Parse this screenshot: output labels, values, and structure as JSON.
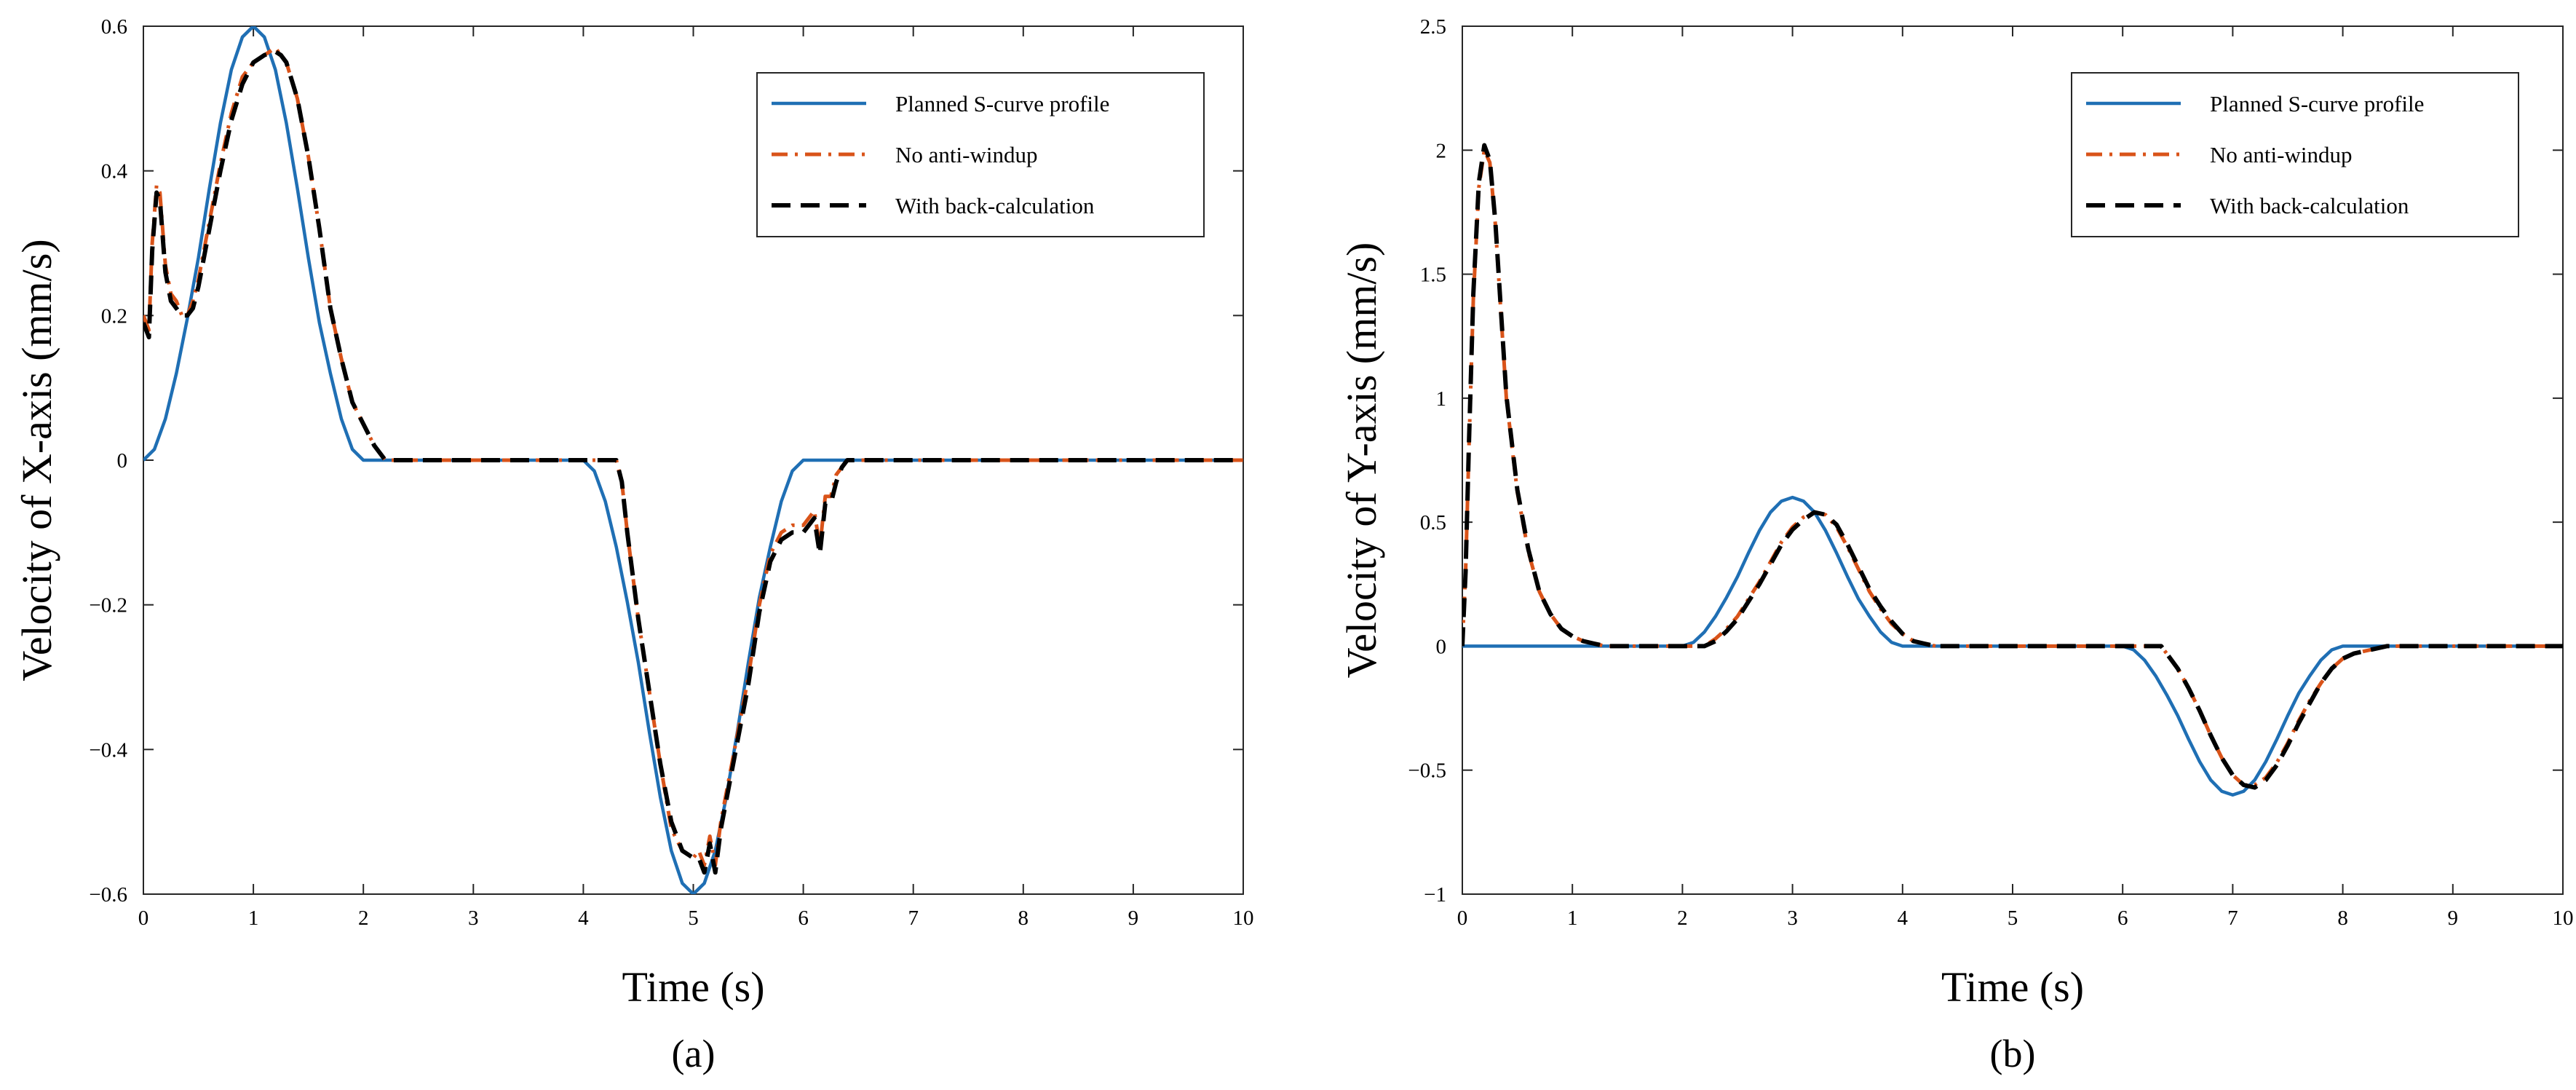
{
  "chart_data": [
    {
      "type": "line",
      "caption": "(a)",
      "xlabel": "Time (s)",
      "ylabel": "Velocity of X-axis (mm/s)",
      "xlim": [
        0,
        10
      ],
      "ylim": [
        -0.6,
        0.6
      ],
      "xticks": [
        0,
        1,
        2,
        3,
        4,
        5,
        6,
        7,
        8,
        9,
        10
      ],
      "xtick_labels": [
        "0",
        "1",
        "2",
        "3",
        "4",
        "5",
        "6",
        "7",
        "8",
        "9",
        "10"
      ],
      "yticks": [
        -0.6,
        -0.4,
        -0.2,
        0,
        0.2,
        0.4,
        0.6
      ],
      "ytick_labels": [
        "−0.6",
        "−0.4",
        "−0.2",
        "0",
        "0.2",
        "0.4",
        "0.6"
      ],
      "legend_position": "top-right",
      "series": [
        {
          "name": "Planned S-curve profile",
          "color": "#1f6fb4",
          "style": "solid",
          "x": [
            0,
            0.1,
            0.2,
            0.3,
            0.4,
            0.5,
            0.6,
            0.7,
            0.8,
            0.9,
            1.0,
            1.1,
            1.2,
            1.3,
            1.4,
            1.5,
            1.6,
            1.7,
            1.8,
            1.9,
            2.0,
            4.0,
            4.1,
            4.2,
            4.3,
            4.4,
            4.5,
            4.6,
            4.7,
            4.8,
            4.9,
            5.0,
            5.1,
            5.2,
            5.3,
            5.4,
            5.5,
            5.6,
            5.7,
            5.8,
            5.9,
            6.0,
            10
          ],
          "y": [
            0,
            0.015,
            0.057,
            0.12,
            0.196,
            0.28,
            0.376,
            0.466,
            0.54,
            0.585,
            0.6,
            0.585,
            0.54,
            0.466,
            0.376,
            0.28,
            0.19,
            0.12,
            0.057,
            0.015,
            0,
            0,
            -0.015,
            -0.057,
            -0.12,
            -0.196,
            -0.28,
            -0.376,
            -0.466,
            -0.54,
            -0.585,
            -0.6,
            -0.585,
            -0.54,
            -0.466,
            -0.376,
            -0.28,
            -0.19,
            -0.12,
            -0.057,
            -0.015,
            0,
            0
          ]
        },
        {
          "name": "No anti-windup",
          "color": "#d95319",
          "style": "dashdot",
          "x": [
            0,
            0.05,
            0.08,
            0.12,
            0.15,
            0.2,
            0.25,
            0.3,
            0.35,
            0.4,
            0.45,
            0.5,
            0.6,
            0.7,
            0.8,
            0.9,
            1.0,
            1.1,
            1.2,
            1.25,
            1.3,
            1.4,
            1.5,
            1.6,
            1.7,
            1.8,
            1.9,
            2.0,
            2.1,
            2.2,
            2.25,
            4.3,
            4.35,
            4.4,
            4.5,
            4.6,
            4.7,
            4.8,
            4.9,
            5.0,
            5.05,
            5.1,
            5.15,
            5.2,
            5.25,
            5.3,
            5.4,
            5.5,
            5.6,
            5.7,
            5.8,
            5.9,
            6.0,
            6.1,
            6.15,
            6.2,
            6.25,
            6.3,
            6.35,
            6.4,
            6.45,
            10
          ],
          "y": [
            0.2,
            0.18,
            0.3,
            0.38,
            0.37,
            0.27,
            0.23,
            0.22,
            0.2,
            0.2,
            0.22,
            0.25,
            0.33,
            0.41,
            0.48,
            0.53,
            0.55,
            0.56,
            0.57,
            0.56,
            0.55,
            0.5,
            0.42,
            0.32,
            0.21,
            0.14,
            0.08,
            0.05,
            0.02,
            0.0,
            0,
            0,
            -0.03,
            -0.1,
            -0.22,
            -0.32,
            -0.42,
            -0.51,
            -0.54,
            -0.55,
            -0.54,
            -0.56,
            -0.52,
            -0.56,
            -0.5,
            -0.46,
            -0.38,
            -0.3,
            -0.2,
            -0.13,
            -0.1,
            -0.09,
            -0.09,
            -0.07,
            -0.12,
            -0.05,
            -0.05,
            -0.02,
            -0.01,
            0,
            0,
            0
          ]
        },
        {
          "name": "With back-calculation",
          "color": "#000000",
          "style": "dashed",
          "x": [
            0,
            0.05,
            0.08,
            0.12,
            0.15,
            0.2,
            0.25,
            0.3,
            0.35,
            0.4,
            0.45,
            0.5,
            0.6,
            0.7,
            0.8,
            0.9,
            1.0,
            1.1,
            1.2,
            1.25,
            1.3,
            1.4,
            1.5,
            1.6,
            1.7,
            1.8,
            1.9,
            2.0,
            2.1,
            2.2,
            2.25,
            4.3,
            4.35,
            4.4,
            4.5,
            4.6,
            4.7,
            4.8,
            4.9,
            5.0,
            5.05,
            5.1,
            5.15,
            5.2,
            5.25,
            5.3,
            5.4,
            5.5,
            5.6,
            5.7,
            5.8,
            5.9,
            6.0,
            6.1,
            6.15,
            6.2,
            6.25,
            6.3,
            6.35,
            6.4,
            6.45,
            10
          ],
          "y": [
            0.19,
            0.17,
            0.29,
            0.37,
            0.36,
            0.26,
            0.22,
            0.21,
            0.2,
            0.2,
            0.21,
            0.24,
            0.32,
            0.4,
            0.47,
            0.52,
            0.55,
            0.56,
            0.565,
            0.56,
            0.55,
            0.5,
            0.42,
            0.32,
            0.21,
            0.14,
            0.08,
            0.05,
            0.02,
            0.0,
            0,
            0,
            -0.03,
            -0.1,
            -0.22,
            -0.32,
            -0.42,
            -0.5,
            -0.54,
            -0.55,
            -0.55,
            -0.57,
            -0.53,
            -0.57,
            -0.51,
            -0.47,
            -0.39,
            -0.31,
            -0.21,
            -0.14,
            -0.11,
            -0.1,
            -0.1,
            -0.08,
            -0.13,
            -0.06,
            -0.06,
            -0.03,
            -0.01,
            0,
            0,
            0
          ]
        }
      ]
    },
    {
      "type": "line",
      "caption": "(b)",
      "xlabel": "Time (s)",
      "ylabel": "Velocity of Y-axis (mm/s)",
      "xlim": [
        0,
        10
      ],
      "ylim": [
        -1,
        2.5
      ],
      "xticks": [
        0,
        1,
        2,
        3,
        4,
        5,
        6,
        7,
        8,
        9,
        10
      ],
      "xtick_labels": [
        "0",
        "1",
        "2",
        "3",
        "4",
        "5",
        "6",
        "7",
        "8",
        "9",
        "10"
      ],
      "yticks": [
        -1,
        -0.5,
        0,
        0.5,
        1,
        1.5,
        2,
        2.5
      ],
      "ytick_labels": [
        "−1",
        "−0.5",
        "0",
        "0.5",
        "1",
        "1.5",
        "2",
        "2.5"
      ],
      "legend_position": "top-right",
      "series": [
        {
          "name": "Planned S-curve profile",
          "color": "#1f6fb4",
          "style": "solid",
          "x": [
            0,
            2.0,
            2.1,
            2.2,
            2.3,
            2.4,
            2.5,
            2.6,
            2.7,
            2.8,
            2.9,
            3.0,
            3.1,
            3.2,
            3.3,
            3.4,
            3.5,
            3.6,
            3.7,
            3.8,
            3.9,
            4.0,
            6.0,
            6.1,
            6.2,
            6.3,
            6.4,
            6.5,
            6.6,
            6.7,
            6.8,
            6.9,
            7.0,
            7.1,
            7.2,
            7.3,
            7.4,
            7.5,
            7.6,
            7.7,
            7.8,
            7.9,
            8.0,
            10
          ],
          "y": [
            0,
            0,
            0.015,
            0.057,
            0.12,
            0.196,
            0.28,
            0.376,
            0.466,
            0.54,
            0.585,
            0.6,
            0.585,
            0.54,
            0.466,
            0.376,
            0.28,
            0.19,
            0.12,
            0.057,
            0.015,
            0,
            0,
            -0.015,
            -0.057,
            -0.12,
            -0.196,
            -0.28,
            -0.376,
            -0.466,
            -0.54,
            -0.585,
            -0.6,
            -0.585,
            -0.54,
            -0.466,
            -0.376,
            -0.28,
            -0.19,
            -0.12,
            -0.057,
            -0.015,
            0,
            0
          ]
        },
        {
          "name": "No anti-windup",
          "color": "#d95319",
          "style": "dashdot",
          "x": [
            0,
            0.03,
            0.06,
            0.1,
            0.15,
            0.2,
            0.25,
            0.3,
            0.35,
            0.4,
            0.5,
            0.6,
            0.7,
            0.8,
            0.9,
            1.0,
            1.1,
            1.2,
            1.3,
            2.2,
            2.3,
            2.4,
            2.5,
            2.6,
            2.7,
            2.8,
            2.9,
            3.0,
            3.1,
            3.2,
            3.3,
            3.4,
            3.5,
            3.6,
            3.7,
            3.8,
            3.9,
            4.0,
            4.1,
            4.2,
            4.3,
            6.35,
            6.4,
            6.5,
            6.6,
            6.7,
            6.8,
            6.9,
            7.0,
            7.1,
            7.2,
            7.3,
            7.4,
            7.5,
            7.6,
            7.7,
            7.8,
            7.9,
            8.0,
            8.1,
            8.2,
            8.3,
            8.4,
            10
          ],
          "y": [
            0,
            0.3,
            0.8,
            1.4,
            1.85,
            2.0,
            1.95,
            1.7,
            1.35,
            1.0,
            0.62,
            0.38,
            0.22,
            0.13,
            0.07,
            0.04,
            0.02,
            0.01,
            0,
            0,
            0.03,
            0.07,
            0.12,
            0.19,
            0.26,
            0.34,
            0.42,
            0.48,
            0.52,
            0.54,
            0.53,
            0.48,
            0.4,
            0.31,
            0.22,
            0.15,
            0.09,
            0.05,
            0.02,
            0.01,
            0,
            0,
            -0.03,
            -0.09,
            -0.17,
            -0.26,
            -0.36,
            -0.45,
            -0.52,
            -0.56,
            -0.56,
            -0.53,
            -0.47,
            -0.39,
            -0.3,
            -0.22,
            -0.15,
            -0.09,
            -0.05,
            -0.03,
            -0.02,
            -0.01,
            0,
            0
          ]
        },
        {
          "name": "With back-calculation",
          "color": "#000000",
          "style": "dashed",
          "x": [
            0,
            0.03,
            0.06,
            0.1,
            0.15,
            0.2,
            0.25,
            0.3,
            0.35,
            0.4,
            0.5,
            0.6,
            0.7,
            0.8,
            0.9,
            1.0,
            1.1,
            1.2,
            1.3,
            2.2,
            2.3,
            2.4,
            2.5,
            2.6,
            2.7,
            2.8,
            2.9,
            3.0,
            3.1,
            3.2,
            3.3,
            3.4,
            3.5,
            3.6,
            3.7,
            3.8,
            3.9,
            4.0,
            4.1,
            4.2,
            4.3,
            6.35,
            6.4,
            6.5,
            6.6,
            6.7,
            6.8,
            6.9,
            7.0,
            7.1,
            7.2,
            7.3,
            7.4,
            7.5,
            7.6,
            7.7,
            7.8,
            7.9,
            8.0,
            8.1,
            8.2,
            8.3,
            8.4,
            10
          ],
          "y": [
            0,
            0.3,
            0.82,
            1.42,
            1.87,
            2.02,
            1.96,
            1.71,
            1.36,
            1.01,
            0.63,
            0.39,
            0.22,
            0.13,
            0.07,
            0.04,
            0.02,
            0.01,
            0,
            0,
            0.02,
            0.06,
            0.11,
            0.18,
            0.25,
            0.33,
            0.41,
            0.47,
            0.51,
            0.54,
            0.53,
            0.49,
            0.41,
            0.32,
            0.23,
            0.16,
            0.1,
            0.05,
            0.02,
            0.01,
            0,
            0,
            -0.03,
            -0.09,
            -0.17,
            -0.26,
            -0.36,
            -0.45,
            -0.52,
            -0.56,
            -0.57,
            -0.54,
            -0.48,
            -0.4,
            -0.31,
            -0.23,
            -0.15,
            -0.09,
            -0.05,
            -0.03,
            -0.02,
            -0.01,
            0,
            0
          ]
        }
      ]
    }
  ]
}
